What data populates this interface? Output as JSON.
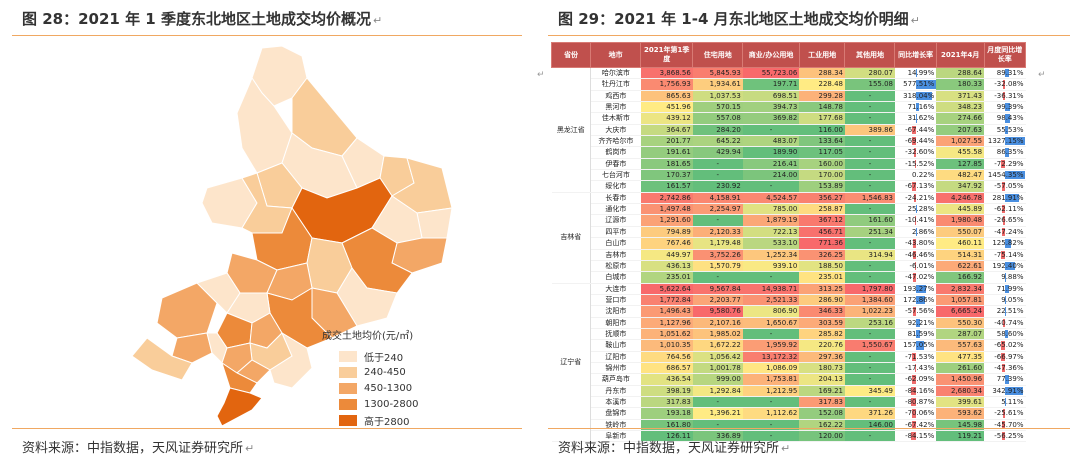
{
  "left": {
    "title": "图 28：2021 年 1 季度东北地区土地成交均价概况",
    "source": "资料来源：中指数据，天风证券研究所",
    "legend": {
      "title": "成交土地均价(元/㎡)",
      "items": [
        {
          "label": "低于240",
          "color": "#fde5cb"
        },
        {
          "label": "240-450",
          "color": "#f9cd9a"
        },
        {
          "label": "450-1300",
          "color": "#f3a766"
        },
        {
          "label": "1300-2800",
          "color": "#ec8a3a"
        },
        {
          "label": "高于2800",
          "color": "#e2650f"
        }
      ]
    }
  },
  "right": {
    "title": "图 29：2021 年 1-4 月东北地区土地成交均价明细",
    "source": "资料来源：中指数据，天风证券研究所",
    "headers": [
      "省份",
      "地市",
      "2021年第1季度",
      "住宅用地",
      "商业/办公用地",
      "工业用地",
      "其他用地",
      "同比增长率",
      "2021年4月",
      "月度同比增长率"
    ],
    "groups": [
      {
        "province": "黑龙江省",
        "rows": [
          [
            "哈尔滨市",
            "3,868.56",
            "5,845.93",
            "55,723.06",
            "288.34",
            "280.07",
            "14.99%",
            "288.64",
            "89.31%"
          ],
          [
            "牡丹江市",
            "1,756.93",
            "1,934.61",
            "197.71",
            "228.48",
            "155.08",
            "577.51%",
            "180.33",
            "-32.08%"
          ],
          [
            "鸡西市",
            "865.63",
            "1,037.53",
            "698.51",
            "299.28",
            "-",
            "318.04%",
            "371.43",
            "-36.31%"
          ],
          [
            "黑河市",
            "451.96",
            "570.15",
            "394.73",
            "148.78",
            "-",
            "71.16%",
            "348.23",
            "99.39%"
          ],
          [
            "佳木斯市",
            "439.12",
            "557.08",
            "369.82",
            "177.68",
            "-",
            "31.62%",
            "274.66",
            "98.43%"
          ],
          [
            "大庆市",
            "364.67",
            "284.20",
            "-",
            "116.00",
            "389.86",
            "-67.44%",
            "207.63",
            "55.53%"
          ],
          [
            "齐齐哈尔市",
            "201.77",
            "645.22",
            "483.07",
            "133.64",
            "-",
            "-69.44%",
            "1,027.55",
            "1327.15%"
          ],
          [
            "鹤岗市",
            "191.61",
            "429.94",
            "189.90",
            "117.05",
            "-",
            "-32.60%",
            "455.58",
            "86.35%"
          ],
          [
            "伊春市",
            "181.65",
            "-",
            "216.41",
            "160.00",
            "-",
            "-15.52%",
            "127.85",
            "-72.29%"
          ],
          [
            "七台河市",
            "170.37",
            "-",
            "214.00",
            "170.00",
            "-",
            "0.22%",
            "482.47",
            "1454.35%"
          ],
          [
            "绥化市",
            "161.57",
            "230.92",
            "-",
            "153.89",
            "-",
            "-67.13%",
            "347.92",
            "-57.05%"
          ]
        ]
      },
      {
        "province": "吉林省",
        "rows": [
          [
            "长春市",
            "2,742.86",
            "4,158.91",
            "4,524.57",
            "356.27",
            "1,546.83",
            "-24.21%",
            "4,246.78",
            "281.91%"
          ],
          [
            "通化市",
            "1,497.48",
            "2,254.97",
            "785.00",
            "258.87",
            "-",
            "25.28%",
            "445.89",
            "-62.11%"
          ],
          [
            "辽源市",
            "1,291.60",
            "-",
            "1,879.19",
            "367.12",
            "161.60",
            "-10.41%",
            "1,980.48",
            "-26.65%"
          ],
          [
            "四平市",
            "794.89",
            "2,120.33",
            "722.13",
            "456.71",
            "251.34",
            "2.86%",
            "550.07",
            "-47.24%"
          ],
          [
            "白山市",
            "767.46",
            "1,179.48",
            "533.10",
            "771.36",
            "-",
            "-43.80%",
            "460.11",
            "125.82%"
          ],
          [
            "吉林市",
            "449.97",
            "3,752.26",
            "1,252.34",
            "326.25",
            "314.94",
            "-46.46%",
            "514.31",
            "-75.14%"
          ],
          [
            "松原市",
            "436.13",
            "1,570.79",
            "939.10",
            "188.50",
            "-",
            "-6.01%",
            "622.61",
            "192.40%"
          ],
          [
            "白城市",
            "235.01",
            "-",
            "-",
            "235.01",
            "-",
            "-47.02%",
            "166.92",
            "9.88%"
          ]
        ]
      },
      {
        "province": "辽宁省",
        "rows": [
          [
            "大连市",
            "5,622.64",
            "9,567.84",
            "14,938.71",
            "313.25",
            "1,797.80",
            "193.27%",
            "2,832.34",
            "71.99%"
          ],
          [
            "营口市",
            "1,772.84",
            "2,203.77",
            "2,521.33",
            "286.90",
            "1,384.60",
            "172.86%",
            "1,057.81",
            "9.05%"
          ],
          [
            "沈阳市",
            "1,496.43",
            "9,580.76",
            "806.90",
            "346.33",
            "1,022.23",
            "-57.56%",
            "6,665.24",
            "22.51%"
          ],
          [
            "朝阳市",
            "1,127.96",
            "2,107.16",
            "1,650.67",
            "303.59",
            "253.16",
            "92.21%",
            "550.30",
            "-40.74%"
          ],
          [
            "抚顺市",
            "1,051.62",
            "1,985.02",
            "-",
            "285.82",
            "-",
            "81.59%",
            "287.07",
            "58.60%"
          ],
          [
            "鞍山市",
            "1,010.35",
            "1,672.22",
            "1,959.92",
            "220.76",
            "1,550.67",
            "157.05%",
            "557.63",
            "-65.02%"
          ],
          [
            "辽阳市",
            "764.56",
            "1,056.42",
            "13,172.32",
            "297.36",
            "-",
            "-71.53%",
            "477.35",
            "-66.97%"
          ],
          [
            "锦州市",
            "686.57",
            "1,001.78",
            "1,086.09",
            "180.73",
            "-",
            "-17.43%",
            "261.60",
            "-47.36%"
          ],
          [
            "葫芦岛市",
            "436.54",
            "999.00",
            "1,753.81",
            "204.13",
            "-",
            "-62.09%",
            "1,450.96",
            "77.39%"
          ],
          [
            "丹东市",
            "398.19",
            "1,292.84",
            "1,212.95",
            "169.21",
            "345.49",
            "-84.16%",
            "2,680.34",
            "342.91%"
          ],
          [
            "本溪市",
            "317.83",
            "-",
            "-",
            "317.83",
            "-",
            "-80.87%",
            "399.61",
            "5.11%"
          ],
          [
            "盘锦市",
            "193.18",
            "1,396.21",
            "1,112.62",
            "152.08",
            "371.26",
            "-70.06%",
            "593.62",
            "-25.61%"
          ],
          [
            "铁岭市",
            "161.80",
            "-",
            "-",
            "162.22",
            "146.00",
            "-67.42%",
            "145.98",
            "-45.70%"
          ],
          [
            "阜新市",
            "126.11",
            "336.89",
            "-",
            "120.00",
            "-",
            "-84.15%",
            "119.21",
            "-56.25%"
          ]
        ]
      }
    ]
  }
}
